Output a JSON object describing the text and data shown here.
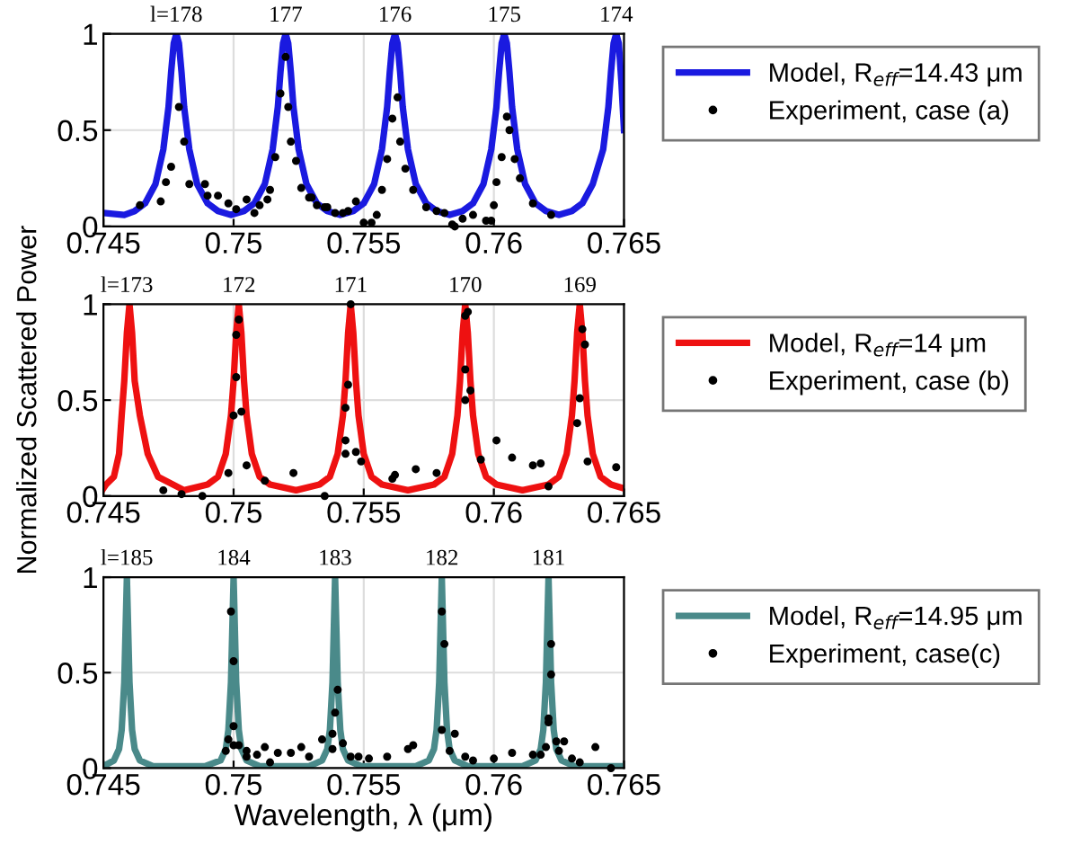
{
  "chart_data": [
    {
      "type": "line",
      "xlim": [
        0.745,
        0.765
      ],
      "ylim": [
        0,
        1
      ],
      "xticks": [
        0.745,
        0.75,
        0.755,
        0.76,
        0.765
      ],
      "yticks": [
        0,
        0.5,
        1
      ],
      "grid": true,
      "legend": "right",
      "annotations": [
        {
          "text": "l=178",
          "x": 0.7478,
          "y": 1
        },
        {
          "text": "177",
          "x": 0.752,
          "y": 1
        },
        {
          "text": "176",
          "x": 0.7562,
          "y": 1
        },
        {
          "text": "175",
          "x": 0.7604,
          "y": 1
        },
        {
          "text": "174",
          "x": 0.7647,
          "y": 1
        }
      ],
      "series": [
        {
          "name": "Model, R$_{eff}$=14.43 μm",
          "marker": "none",
          "line_style": "solid",
          "color": "#1a1ae0",
          "x": [
            0.745,
            0.7458,
            0.7462,
            0.7466,
            0.747,
            0.7473,
            0.7475,
            0.7476,
            0.7477,
            0.7478,
            0.7479,
            0.748,
            0.7481,
            0.7483,
            0.7486,
            0.749,
            0.7494,
            0.7499,
            0.7504,
            0.7508,
            0.7512,
            0.7515,
            0.7517,
            0.7518,
            0.7519,
            0.752,
            0.7521,
            0.7522,
            0.7523,
            0.7525,
            0.7528,
            0.7532,
            0.7536,
            0.7541,
            0.7546,
            0.755,
            0.7554,
            0.7557,
            0.7559,
            0.756,
            0.7561,
            0.7562,
            0.7563,
            0.7564,
            0.7565,
            0.7567,
            0.757,
            0.7574,
            0.7578,
            0.7583,
            0.7588,
            0.7592,
            0.7596,
            0.7599,
            0.7601,
            0.7602,
            0.7603,
            0.7604,
            0.7605,
            0.7606,
            0.7607,
            0.7609,
            0.7612,
            0.7616,
            0.762,
            0.7625,
            0.763,
            0.7634,
            0.7638,
            0.7642,
            0.7644,
            0.7645,
            0.7646,
            0.7647,
            0.7648,
            0.7649,
            0.765
          ],
          "values": [
            0.07,
            0.06,
            0.08,
            0.12,
            0.22,
            0.4,
            0.62,
            0.8,
            0.95,
            1,
            0.95,
            0.8,
            0.62,
            0.4,
            0.22,
            0.12,
            0.08,
            0.06,
            0.08,
            0.12,
            0.22,
            0.4,
            0.62,
            0.8,
            0.95,
            1,
            0.95,
            0.8,
            0.62,
            0.4,
            0.22,
            0.12,
            0.08,
            0.06,
            0.08,
            0.12,
            0.22,
            0.4,
            0.62,
            0.8,
            0.95,
            1,
            0.95,
            0.8,
            0.62,
            0.4,
            0.22,
            0.12,
            0.08,
            0.06,
            0.08,
            0.12,
            0.22,
            0.4,
            0.62,
            0.8,
            0.95,
            1,
            0.95,
            0.8,
            0.62,
            0.4,
            0.22,
            0.12,
            0.08,
            0.06,
            0.08,
            0.12,
            0.22,
            0.4,
            0.62,
            0.8,
            0.95,
            1,
            0.95,
            0.75,
            0.5
          ]
        },
        {
          "name": "Experiment, case (a)",
          "type": "scatter",
          "marker": "circle",
          "color": "#000000",
          "x": [
            0.7464,
            0.7472,
            0.7474,
            0.7476,
            0.7479,
            0.7481,
            0.7483,
            0.7489,
            0.749,
            0.7494,
            0.7498,
            0.7501,
            0.7505,
            0.7508,
            0.751,
            0.7513,
            0.7514,
            0.7516,
            0.7518,
            0.752,
            0.7521,
            0.7522,
            0.7524,
            0.7526,
            0.7529,
            0.753,
            0.7532,
            0.7535,
            0.7536,
            0.7539,
            0.7542,
            0.7544,
            0.7547,
            0.755,
            0.7553,
            0.7555,
            0.7557,
            0.7559,
            0.7561,
            0.7563,
            0.7564,
            0.7566,
            0.7569,
            0.7574,
            0.7578,
            0.7581,
            0.7584,
            0.7585,
            0.7588,
            0.7592,
            0.7597,
            0.7599,
            0.76,
            0.7601,
            0.7603,
            0.7605,
            0.7606,
            0.7608,
            0.761,
            0.7615,
            0.7622
          ],
          "values": [
            0.11,
            0.13,
            0.23,
            0.31,
            0.62,
            0.44,
            0.22,
            0.22,
            0.16,
            0.16,
            0.12,
            0.09,
            0.14,
            0.07,
            0.11,
            0.14,
            0.19,
            0.36,
            0.69,
            0.88,
            0.62,
            0.44,
            0.34,
            0.2,
            0.15,
            0.15,
            0.11,
            0.1,
            0.1,
            0.07,
            0.07,
            0.08,
            0.13,
            0.02,
            0.02,
            0.06,
            0.19,
            0.35,
            0.56,
            0.67,
            0.44,
            0.3,
            0.19,
            0.1,
            0.08,
            0.07,
            0.01,
            0,
            0.04,
            0.06,
            0.03,
            0.03,
            0.11,
            0.23,
            0.36,
            0.57,
            0.5,
            0.35,
            0.25,
            0.12,
            0.06
          ]
        }
      ]
    },
    {
      "type": "line",
      "xlim": [
        0.745,
        0.765
      ],
      "ylim": [
        0,
        1
      ],
      "xticks": [
        0.745,
        0.75,
        0.755,
        0.76,
        0.765
      ],
      "yticks": [
        0,
        0.5,
        1
      ],
      "grid": true,
      "legend": "right",
      "ylabel": "Normalized Scattered Power",
      "annotations": [
        {
          "text": "l=173",
          "x": 0.7459,
          "y": 1
        },
        {
          "text": "172",
          "x": 0.7502,
          "y": 1
        },
        {
          "text": "171",
          "x": 0.7545,
          "y": 1
        },
        {
          "text": "170",
          "x": 0.7589,
          "y": 1
        },
        {
          "text": "169",
          "x": 0.7633,
          "y": 1
        }
      ],
      "series": [
        {
          "name": "Model, R$_{eff}$=14 μm",
          "marker": "none",
          "line_style": "solid",
          "color": "#ee1111",
          "x": [
            0.745,
            0.7451,
            0.7454,
            0.7456,
            0.7457,
            0.7458,
            0.7459,
            0.746,
            0.7461,
            0.7462,
            0.7464,
            0.7467,
            0.7471,
            0.7481,
            0.749,
            0.7494,
            0.7497,
            0.7499,
            0.75,
            0.7501,
            0.7502,
            0.7503,
            0.7504,
            0.7505,
            0.7507,
            0.751,
            0.7514,
            0.7524,
            0.7533,
            0.7537,
            0.754,
            0.7542,
            0.7543,
            0.7544,
            0.7545,
            0.7546,
            0.7547,
            0.7548,
            0.755,
            0.7553,
            0.7557,
            0.7567,
            0.7577,
            0.7581,
            0.7584,
            0.7586,
            0.7587,
            0.7588,
            0.7589,
            0.759,
            0.7591,
            0.7592,
            0.7594,
            0.7597,
            0.7601,
            0.7611,
            0.7621,
            0.7625,
            0.7628,
            0.763,
            0.7631,
            0.7632,
            0.7633,
            0.7634,
            0.7635,
            0.7636,
            0.7638,
            0.7641,
            0.7645,
            0.765
          ],
          "values": [
            0.04,
            0.06,
            0.1,
            0.22,
            0.42,
            0.6,
            0.85,
            1,
            0.85,
            0.6,
            0.42,
            0.22,
            0.1,
            0.03,
            0.06,
            0.1,
            0.22,
            0.42,
            0.6,
            0.85,
            1,
            0.85,
            0.6,
            0.42,
            0.22,
            0.1,
            0.06,
            0.03,
            0.06,
            0.1,
            0.22,
            0.42,
            0.6,
            0.85,
            1,
            0.85,
            0.6,
            0.42,
            0.22,
            0.1,
            0.06,
            0.03,
            0.06,
            0.1,
            0.22,
            0.42,
            0.6,
            0.85,
            1,
            0.85,
            0.6,
            0.42,
            0.22,
            0.1,
            0.06,
            0.03,
            0.06,
            0.1,
            0.22,
            0.42,
            0.6,
            0.85,
            1,
            0.85,
            0.6,
            0.42,
            0.22,
            0.1,
            0.06,
            0.04
          ]
        },
        {
          "name": "Experiment, case (b)",
          "type": "scatter",
          "marker": "circle",
          "color": "#000000",
          "x": [
            0.7473,
            0.748,
            0.7488,
            0.7498,
            0.75,
            0.7501,
            0.7501,
            0.7502,
            0.7503,
            0.7505,
            0.7512,
            0.7523,
            0.7535,
            0.7543,
            0.7543,
            0.7543,
            0.7544,
            0.7545,
            0.7547,
            0.7549,
            0.7561,
            0.7562,
            0.757,
            0.7578,
            0.7589,
            0.7589,
            0.7589,
            0.759,
            0.7591,
            0.7595,
            0.7601,
            0.7607,
            0.7615,
            0.7618,
            0.7621,
            0.7632,
            0.7633,
            0.7634,
            0.7635,
            0.7636,
            0.7647
          ],
          "values": [
            0.03,
            0.01,
            0,
            0.12,
            0.42,
            0.62,
            0.84,
            0.92,
            0.44,
            0.16,
            0.08,
            0.12,
            0,
            0.29,
            0.22,
            0.46,
            0.58,
            1,
            0.23,
            0.18,
            0.09,
            0.11,
            0.14,
            0.12,
            0.5,
            0.66,
            0.94,
            0.96,
            0.55,
            0.19,
            0.29,
            0.2,
            0.16,
            0.17,
            0.05,
            0.38,
            0.51,
            0.87,
            0.79,
            0.18,
            0.15
          ]
        }
      ]
    },
    {
      "type": "line",
      "xlim": [
        0.745,
        0.765
      ],
      "ylim": [
        0,
        1
      ],
      "xticks": [
        0.745,
        0.75,
        0.755,
        0.76,
        0.765
      ],
      "yticks": [
        0,
        0.5,
        1
      ],
      "grid": true,
      "legend": "right",
      "xlabel": "Wavelength, λ (μm)",
      "annotations": [
        {
          "text": "l=185",
          "x": 0.7459,
          "y": 1
        },
        {
          "text": "184",
          "x": 0.75,
          "y": 1
        },
        {
          "text": "183",
          "x": 0.7539,
          "y": 1
        },
        {
          "text": "182",
          "x": 0.758,
          "y": 1
        },
        {
          "text": "181",
          "x": 0.7621,
          "y": 1
        }
      ],
      "series": [
        {
          "name": "Model, R$_{eff}$=14.95 μm",
          "marker": "none",
          "line_style": "solid",
          "color": "#4a8a8a",
          "x": [
            0.745,
            0.7454,
            0.7456,
            0.7457,
            0.7458,
            0.7459,
            0.746,
            0.7461,
            0.7462,
            0.7464,
            0.7469,
            0.7479,
            0.7489,
            0.7495,
            0.7497,
            0.7498,
            0.7499,
            0.75,
            0.7501,
            0.7502,
            0.7503,
            0.7505,
            0.751,
            0.752,
            0.7529,
            0.7534,
            0.7536,
            0.7537,
            0.7538,
            0.7539,
            0.754,
            0.7541,
            0.7542,
            0.7544,
            0.7549,
            0.756,
            0.757,
            0.7575,
            0.7577,
            0.7578,
            0.7579,
            0.758,
            0.7581,
            0.7582,
            0.7583,
            0.7585,
            0.759,
            0.76,
            0.7611,
            0.7616,
            0.7618,
            0.7619,
            0.762,
            0.7621,
            0.7622,
            0.7623,
            0.7624,
            0.7626,
            0.7631,
            0.764,
            0.765
          ],
          "values": [
            0.01,
            0.04,
            0.1,
            0.2,
            0.45,
            1,
            0.45,
            0.2,
            0.1,
            0.04,
            0.01,
            0.01,
            0.01,
            0.04,
            0.1,
            0.2,
            0.45,
            1,
            0.45,
            0.2,
            0.1,
            0.04,
            0.01,
            0.01,
            0.01,
            0.04,
            0.1,
            0.2,
            0.45,
            1,
            0.45,
            0.2,
            0.1,
            0.04,
            0.01,
            0.01,
            0.01,
            0.04,
            0.1,
            0.2,
            0.45,
            1,
            0.45,
            0.2,
            0.1,
            0.04,
            0.01,
            0.01,
            0.01,
            0.04,
            0.1,
            0.2,
            0.45,
            1,
            0.45,
            0.2,
            0.1,
            0.04,
            0.01,
            0.01,
            0.01
          ]
        },
        {
          "name": "Experiment, case(c)",
          "type": "scatter",
          "marker": "circle",
          "color": "#000000",
          "x": [
            0.7497,
            0.7498,
            0.7499,
            0.75,
            0.75,
            0.75,
            0.7502,
            0.7505,
            0.7505,
            0.7509,
            0.7512,
            0.7514,
            0.7517,
            0.7522,
            0.7526,
            0.7529,
            0.7534,
            0.7538,
            0.7538,
            0.7539,
            0.754,
            0.7542,
            0.7545,
            0.7548,
            0.7552,
            0.7559,
            0.7567,
            0.7569,
            0.758,
            0.7581,
            0.758,
            0.7585,
            0.7583,
            0.7589,
            0.7592,
            0.76,
            0.7607,
            0.7615,
            0.7618,
            0.762,
            0.7621,
            0.7621,
            0.7622,
            0.7622,
            0.7624,
            0.7625,
            0.7627,
            0.763,
            0.7633,
            0.7639,
            0.7645
          ],
          "values": [
            0.09,
            0.15,
            0.82,
            0.56,
            0.22,
            0.12,
            0.12,
            0.09,
            0.06,
            0.07,
            0.11,
            0.03,
            0.08,
            0.08,
            0.11,
            0.06,
            0.15,
            0.18,
            0.1,
            0.29,
            0.41,
            0.13,
            0.06,
            0.06,
            0.05,
            0.06,
            0.1,
            0.12,
            0.82,
            0.65,
            0.2,
            0.18,
            0.09,
            0.06,
            0.04,
            0.05,
            0.08,
            0.07,
            0.07,
            0.11,
            0.24,
            0.26,
            0.49,
            0.65,
            0.14,
            0.09,
            0.14,
            0.05,
            0.03,
            0.11,
            0
          ]
        }
      ]
    }
  ]
}
